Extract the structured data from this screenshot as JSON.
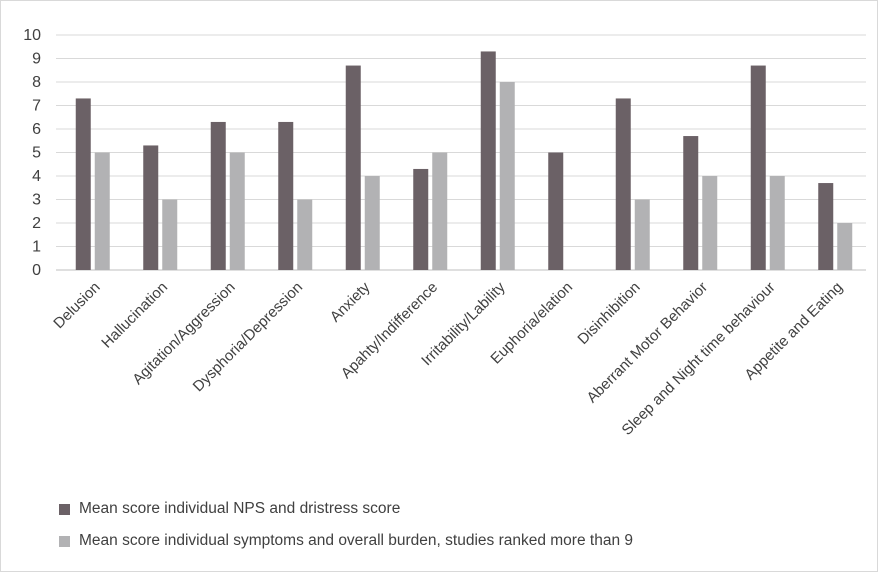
{
  "chart_data": {
    "type": "bar",
    "title": "",
    "xlabel": "",
    "ylabel": "",
    "ylim": [
      0,
      10
    ],
    "yticks": [
      "0",
      "1",
      "2",
      "3",
      "4",
      "5",
      "6",
      "7",
      "8",
      "9",
      "10"
    ],
    "grid": true,
    "legend_position": "bottom",
    "categories": [
      "Delusion",
      "Hallucination",
      "Agitation/Aggression",
      "Dysphoria/Depression",
      "Anxiety",
      "Apahty/Indifference",
      "Irritability/Lability",
      "Euphoria/elation",
      "Disinhibition",
      "Aberrant Motor Behavior",
      "Sleep and Night time behaviour",
      "Appetite and Eating"
    ],
    "series": [
      {
        "name": "Mean score individual NPS and dristress score",
        "color": "#6b6166",
        "values": [
          7.3,
          5.3,
          6.3,
          6.3,
          8.7,
          4.3,
          9.3,
          5.0,
          7.3,
          5.7,
          8.7,
          3.7
        ]
      },
      {
        "name": "Mean score individual symptoms and overall burden, studies ranked more than 9",
        "color": "#b2b2b4",
        "values": [
          5,
          3,
          5,
          3,
          4,
          5,
          8,
          0,
          3,
          4,
          4,
          2
        ]
      }
    ]
  }
}
